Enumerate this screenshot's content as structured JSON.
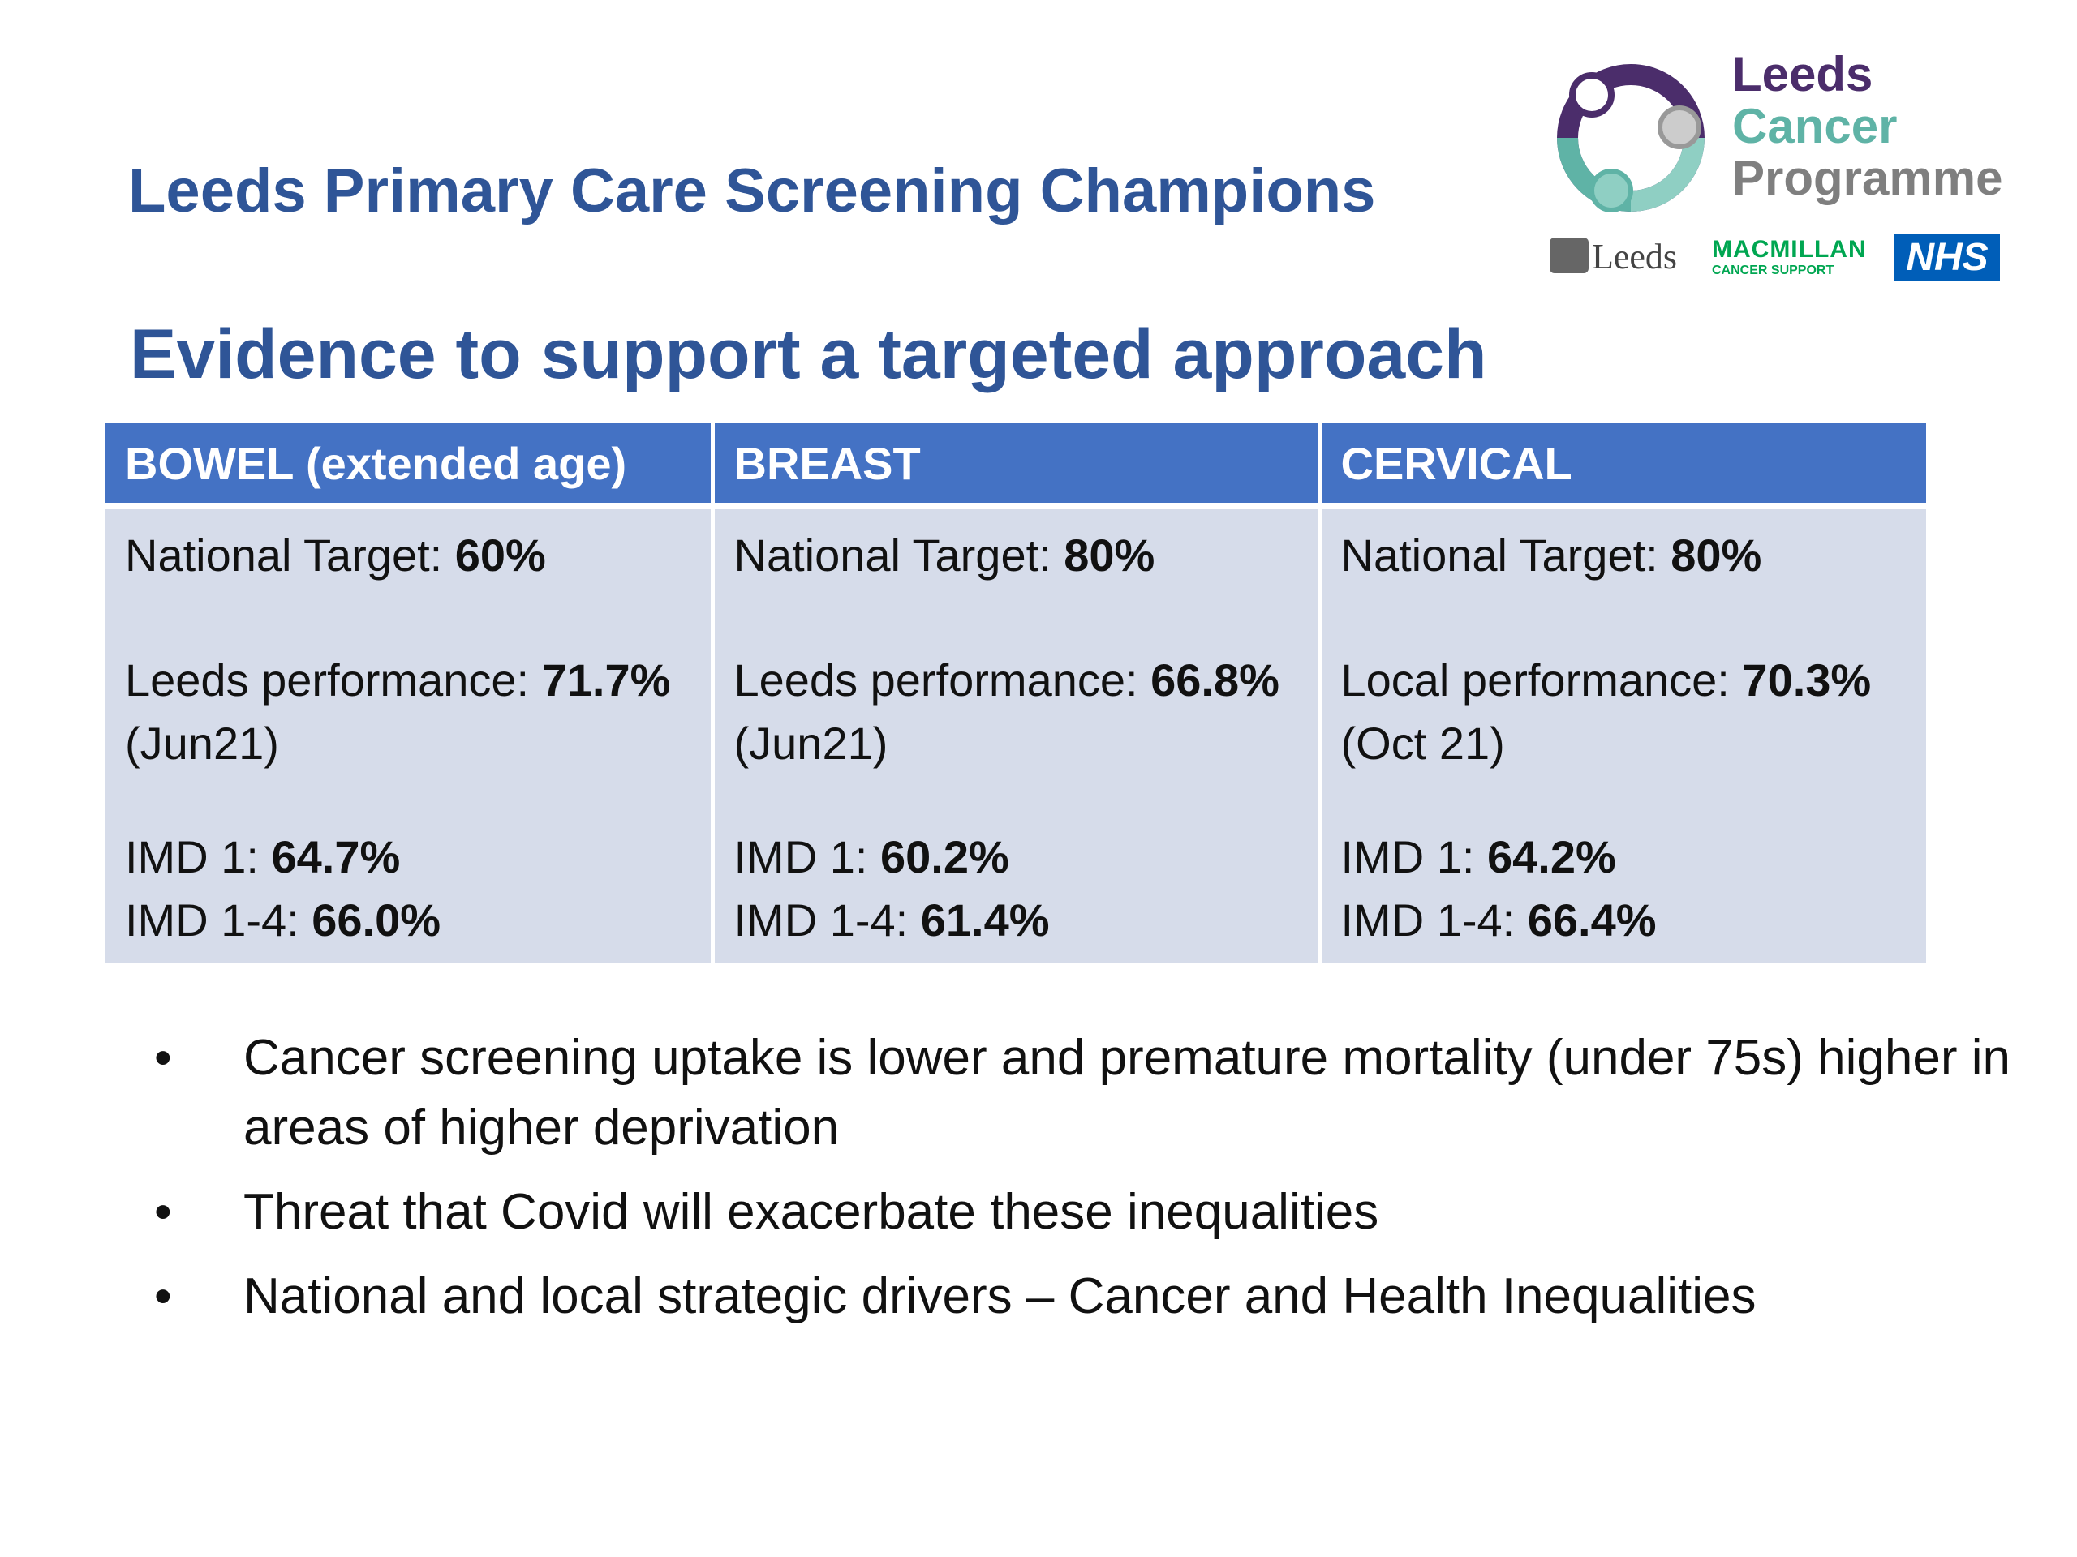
{
  "header": {
    "title": "Leeds Primary Care Screening Champions",
    "subtitle": "Evidence to support a targeted approach"
  },
  "logo": {
    "line1": "Leeds",
    "line2": "Cancer",
    "line3": "Programme",
    "partners": {
      "leeds": "Leeds",
      "macmillan": "MACMILLAN",
      "macmillan_sub": "CANCER SUPPORT",
      "nhs": "NHS"
    },
    "colors": {
      "purple": "#4b2d6b",
      "teal": "#5fb3a6",
      "grey": "#7f7f7f",
      "nhs_blue": "#005eb8",
      "macmillan_green": "#00a651"
    }
  },
  "table": {
    "header_color": "#4472c4",
    "cell_color": "#d6dcea",
    "columns": [
      {
        "heading": "BOWEL (extended age)",
        "target_label": "National Target: ",
        "target_value": "60%",
        "perf_label": "Leeds performance: ",
        "perf_value": "71.7%",
        "perf_date": "(Jun21)",
        "imd1_label": "IMD 1: ",
        "imd1_value": "64.7%",
        "imd14_label": "IMD 1-4: ",
        "imd14_value": "66.0%"
      },
      {
        "heading": "BREAST",
        "target_label": "National Target: ",
        "target_value": "80%",
        "perf_label": "Leeds performance: ",
        "perf_value": "66.8%",
        "perf_date": "(Jun21)",
        "imd1_label": "IMD 1: ",
        "imd1_value": "60.2%",
        "imd14_label": "IMD 1-4: ",
        "imd14_value": "61.4%"
      },
      {
        "heading": "CERVICAL",
        "target_label": "National Target: ",
        "target_value": "80%",
        "perf_label": "Local performance: ",
        "perf_value": "70.3%",
        "perf_date": "(Oct 21)",
        "imd1_label": "IMD 1: ",
        "imd1_value": "64.2%",
        "imd14_label": "IMD 1-4: ",
        "imd14_value": "66.4%"
      }
    ]
  },
  "bullets": {
    "marker": "•",
    "items": [
      "Cancer screening uptake is lower and premature mortality (under 75s) higher in areas of higher deprivation",
      "Threat that Covid will exacerbate these inequalities",
      "National and local strategic drivers – Cancer and Health Inequalities"
    ]
  }
}
